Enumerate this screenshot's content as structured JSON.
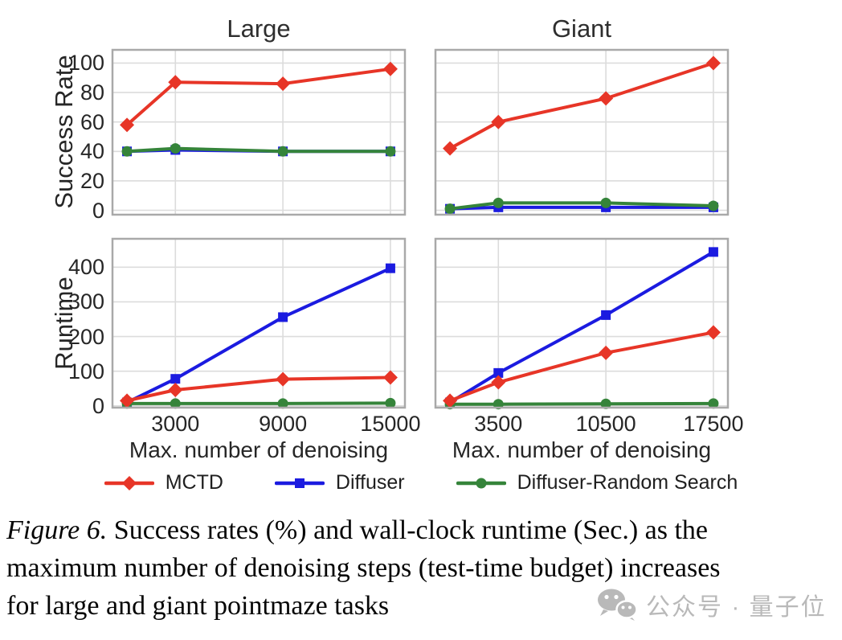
{
  "figure": {
    "titles": {
      "left": "Large",
      "right": "Giant"
    },
    "ylabels": {
      "top": "Success Rate",
      "bottom": "Runtime"
    },
    "xlabel": "Max. number of denoising",
    "legend": [
      {
        "name": "MCTD",
        "color": "#e73527",
        "marker": "diamond"
      },
      {
        "name": "Diffuser",
        "color": "#1b1be0",
        "marker": "square"
      },
      {
        "name": "Diffuser-Random Search",
        "color": "#35843a",
        "marker": "circle"
      }
    ],
    "caption": {
      "label": "Figure 6.",
      "lines": [
        "Success rates (%) and wall-clock runtime (Sec.) as the",
        "maximum number of denoising steps (test-time budget) increases",
        "for large and giant pointmaze tasks"
      ]
    },
    "style": {
      "grid_color": "#dcdcdc",
      "border_color": "#a9a9a9",
      "text_color": "#262626"
    }
  },
  "watermark": {
    "icon": "wechat-icon",
    "text": "公众号 · 量子位",
    "color": "#b9b9b9"
  },
  "chart_data": [
    {
      "type": "line",
      "panel": "top-left",
      "title": "Large",
      "ylabel": "Success Rate",
      "x": [
        300,
        3000,
        9000,
        15000
      ],
      "xticks": [
        3000,
        9000,
        15000
      ],
      "yticks": [
        0,
        20,
        40,
        60,
        80,
        100
      ],
      "xlim": [
        -510,
        15810
      ],
      "ylim": [
        -3,
        109
      ],
      "grid": true,
      "show_xticklabels": false,
      "show_yticklabels": true,
      "series": [
        {
          "name": "MCTD",
          "values": [
            58,
            87,
            86,
            96
          ]
        },
        {
          "name": "Diffuser",
          "values": [
            40,
            41,
            40,
            40
          ]
        },
        {
          "name": "Diffuser-Random Search",
          "values": [
            40,
            42,
            40,
            40
          ]
        }
      ]
    },
    {
      "type": "line",
      "panel": "top-right",
      "title": "Giant",
      "ylabel": "Success Rate",
      "x": [
        350,
        3500,
        10500,
        17500
      ],
      "xticks": [
        3500,
        10500,
        17500
      ],
      "yticks": [
        0,
        20,
        40,
        60,
        80,
        100
      ],
      "xlim": [
        -595,
        18445
      ],
      "ylim": [
        -3,
        109
      ],
      "grid": true,
      "show_xticklabels": false,
      "show_yticklabels": false,
      "series": [
        {
          "name": "MCTD",
          "values": [
            42,
            60,
            76,
            100
          ]
        },
        {
          "name": "Diffuser",
          "values": [
            1,
            2,
            2,
            2
          ]
        },
        {
          "name": "Diffuser-Random Search",
          "values": [
            1,
            5,
            5,
            3
          ]
        }
      ]
    },
    {
      "type": "line",
      "panel": "bottom-left",
      "title": "Large",
      "ylabel": "Runtime",
      "xlabel": "Max. number of denoising",
      "x": [
        300,
        3000,
        9000,
        15000
      ],
      "xticks": [
        3000,
        9000,
        15000
      ],
      "yticks": [
        0,
        100,
        200,
        300,
        400
      ],
      "xlim": [
        -510,
        15810
      ],
      "ylim": [
        -5,
        482
      ],
      "grid": true,
      "show_xticklabels": true,
      "show_yticklabels": true,
      "series": [
        {
          "name": "MCTD",
          "values": [
            15,
            46,
            77,
            82
          ]
        },
        {
          "name": "Diffuser",
          "values": [
            10,
            78,
            256,
            397
          ]
        },
        {
          "name": "Diffuser-Random Search",
          "values": [
            7,
            7,
            7,
            8
          ]
        }
      ]
    },
    {
      "type": "line",
      "panel": "bottom-right",
      "title": "Giant",
      "ylabel": "Runtime",
      "xlabel": "Max. number of denoising",
      "x": [
        350,
        3500,
        10500,
        17500
      ],
      "xticks": [
        3500,
        10500,
        17500
      ],
      "yticks": [
        0,
        100,
        200,
        300,
        400
      ],
      "xlim": [
        -595,
        18445
      ],
      "ylim": [
        -5,
        482
      ],
      "grid": true,
      "show_xticklabels": true,
      "show_yticklabels": false,
      "series": [
        {
          "name": "MCTD",
          "values": [
            15,
            68,
            153,
            212
          ]
        },
        {
          "name": "Diffuser",
          "values": [
            10,
            95,
            262,
            444
          ]
        },
        {
          "name": "Diffuser-Random Search",
          "values": [
            5,
            5,
            6,
            7
          ]
        }
      ]
    }
  ]
}
